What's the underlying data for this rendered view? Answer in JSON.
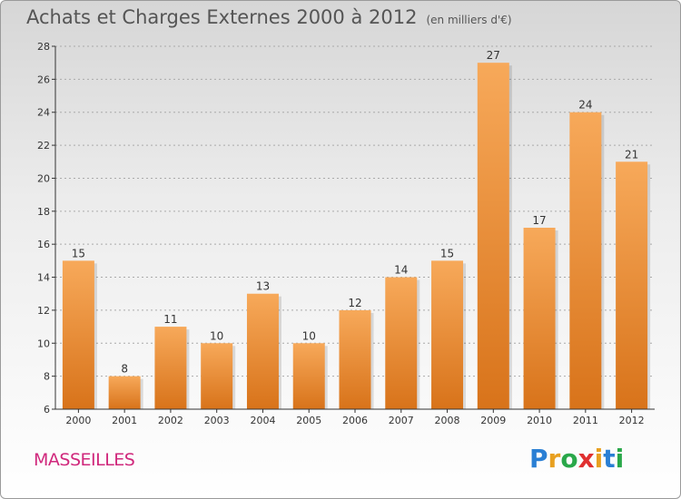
{
  "header": {
    "title": "Achats et Charges Externes 2000 à 2012",
    "unit": "(en milliers d'€)"
  },
  "footer": {
    "commune": "MASSEILLES",
    "logo": {
      "letters": [
        "P",
        "r",
        "o",
        "x",
        "i",
        "t",
        "i"
      ],
      "colors": [
        "#2a7fd4",
        "#e8a020",
        "#2aa84a",
        "#e03030",
        "#e8a020",
        "#2a7fd4",
        "#2aa84a"
      ]
    }
  },
  "colors": {
    "bar_top": "#f7a95a",
    "bar_bottom": "#d8731a",
    "axis": "#333333",
    "grid": "#aaaaaa"
  },
  "chart_data": {
    "type": "bar",
    "title": "Achats et Charges Externes 2000 à 2012",
    "categories": [
      "2000",
      "2001",
      "2002",
      "2003",
      "2004",
      "2005",
      "2006",
      "2007",
      "2008",
      "2009",
      "2010",
      "2011",
      "2012"
    ],
    "values": [
      15,
      8,
      11,
      10,
      13,
      10,
      12,
      14,
      15,
      27,
      17,
      24,
      21
    ],
    "ylim": [
      6,
      28
    ],
    "yticks": [
      6,
      8,
      10,
      12,
      14,
      16,
      18,
      20,
      22,
      24,
      26,
      28
    ],
    "grid": "horizontal dashed",
    "xlabel": "",
    "ylabel": ""
  }
}
